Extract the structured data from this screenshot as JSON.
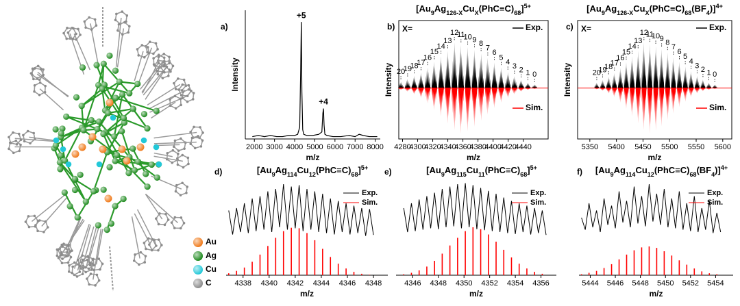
{
  "structure_legend": [
    {
      "label": "Au",
      "color": "#f07a1a"
    },
    {
      "label": "Ag",
      "color": "#1e8a1e"
    },
    {
      "label": "Cu",
      "color": "#22c8d8"
    },
    {
      "label": "C",
      "color": "#8c8c8c"
    }
  ],
  "chart_data": [
    {
      "type": "line",
      "label": "a)",
      "xlabel": "m/z",
      "ylabel": "Intensity",
      "xlim": [
        1550,
        8250
      ],
      "ylim": [
        0,
        110
      ],
      "xticks": [
        2000,
        3000,
        4000,
        5000,
        6000,
        7000,
        8000
      ],
      "x": [
        1900,
        2200,
        2500,
        2800,
        3100,
        3400,
        3700,
        4000,
        4150,
        4250,
        4300,
        4330,
        4360,
        4400,
        4450,
        4600,
        4900,
        5200,
        5350,
        5400,
        5430,
        5460,
        5500,
        5600,
        5900,
        6300,
        6700,
        7000,
        7200,
        7400,
        7700,
        8000,
        8100
      ],
      "values": [
        2,
        3,
        2,
        3,
        2,
        2,
        3,
        3,
        4,
        10,
        60,
        100,
        40,
        8,
        4,
        3,
        3,
        4,
        6,
        22,
        26,
        12,
        4,
        3,
        2,
        2,
        3,
        2,
        4,
        3,
        2,
        2,
        2
      ],
      "color": "#000000",
      "annotations": [
        "+5",
        "+4"
      ]
    },
    {
      "type": "mirror",
      "label": "b)",
      "title": [
        {
          "text": "[Au"
        },
        {
          "text": "9",
          "shift": "sub"
        },
        {
          "text": "Ag"
        },
        {
          "text": "126-X",
          "shift": "sub"
        },
        {
          "text": "Cu"
        },
        {
          "text": "X",
          "shift": "sub"
        },
        {
          "text": "(PhC≡C)"
        },
        {
          "text": "68",
          "shift": "sub"
        },
        {
          "text": "]"
        },
        {
          "text": "5+",
          "shift": "sup"
        }
      ],
      "xlabel": "m/z",
      "ylabel": "Intensity",
      "note": "X=",
      "xlim": [
        4275,
        4473
      ],
      "ylim": [
        0,
        100
      ],
      "xticks": [
        4280,
        4300,
        4320,
        4340,
        4360,
        4380,
        4400,
        4420,
        4440
      ],
      "x": [
        4277.8,
        4286.7,
        4295.5,
        4304.4,
        4313.2,
        4322.1,
        4331.0,
        4339.8,
        4348.7,
        4357.5,
        4366.4,
        4375.3,
        4384.1,
        4393.0,
        4401.8,
        4410.7,
        4419.6,
        4428.4,
        4437.3,
        4446.1,
        4455.0
      ],
      "point_labels": [
        20,
        19,
        18,
        17,
        16,
        15,
        14,
        13,
        12,
        11,
        10,
        9,
        8,
        7,
        6,
        5,
        4,
        3,
        2,
        1,
        0
      ],
      "series": [
        {
          "name": "Exp.",
          "color": "#000000",
          "values": [
            14,
            20,
            27,
            34,
            45,
            58,
            70,
            82,
            100,
            95,
            90,
            84,
            76,
            66,
            56,
            45,
            35,
            26,
            18,
            12,
            8
          ]
        },
        {
          "name": "Sim.",
          "color": "#ff0000",
          "mirrored": true,
          "values": [
            4,
            8,
            14,
            22,
            34,
            48,
            62,
            78,
            92,
            100,
            95,
            85,
            72,
            58,
            44,
            32,
            22,
            14,
            8,
            4,
            2
          ]
        }
      ]
    },
    {
      "type": "mirror",
      "label": "c)",
      "title": [
        {
          "text": "[Au"
        },
        {
          "text": "9",
          "shift": "sub"
        },
        {
          "text": "Ag"
        },
        {
          "text": "126-X",
          "shift": "sub"
        },
        {
          "text": "Cu"
        },
        {
          "text": "X",
          "shift": "sub"
        },
        {
          "text": "(PhC≡C)"
        },
        {
          "text": "68",
          "shift": "sub"
        },
        {
          "text": "(BF"
        },
        {
          "text": "4",
          "shift": "sub"
        },
        {
          "text": ")]"
        },
        {
          "text": "4+",
          "shift": "sup"
        }
      ],
      "xlabel": "m/z",
      "ylabel": "Intensity",
      "note": "X=",
      "xlim": [
        5327,
        5617
      ],
      "ylim": [
        0,
        100
      ],
      "xticks": [
        5350,
        5400,
        5450,
        5500,
        5550,
        5600
      ],
      "x": [
        5363,
        5374.1,
        5385.2,
        5396.3,
        5407.4,
        5418.5,
        5429.6,
        5440.7,
        5451.8,
        5462.9,
        5474,
        5485.1,
        5496.2,
        5507.3,
        5518.4,
        5529.5,
        5540.6,
        5551.7,
        5562.8,
        5573.9,
        5585
      ],
      "point_labels": [
        20,
        19,
        18,
        17,
        16,
        15,
        14,
        13,
        12,
        11,
        10,
        9,
        8,
        7,
        6,
        5,
        4,
        3,
        2,
        1,
        0
      ],
      "series": [
        {
          "name": "Exp.",
          "color": "#000000",
          "values": [
            12,
            18,
            25,
            33,
            44,
            57,
            70,
            82,
            100,
            96,
            92,
            86,
            78,
            68,
            58,
            47,
            37,
            27,
            19,
            12,
            8
          ]
        },
        {
          "name": "Sim.",
          "color": "#ff0000",
          "mirrored": true,
          "values": [
            3,
            6,
            12,
            20,
            32,
            46,
            62,
            78,
            92,
            100,
            94,
            84,
            70,
            56,
            42,
            30,
            20,
            12,
            7,
            4,
            2
          ]
        }
      ]
    },
    {
      "type": "isotope",
      "label": "d)",
      "title": [
        {
          "text": "[Au"
        },
        {
          "text": "9",
          "shift": "sub"
        },
        {
          "text": "Ag"
        },
        {
          "text": "114",
          "shift": "sub"
        },
        {
          "text": "Cu"
        },
        {
          "text": "12",
          "shift": "sub"
        },
        {
          "text": "(PhC≡C)"
        },
        {
          "text": "68",
          "shift": "sub"
        },
        {
          "text": "]"
        },
        {
          "text": "5+",
          "shift": "sup"
        }
      ],
      "xlabel": "m/z",
      "xlim": [
        4336.7,
        4349.1
      ],
      "ylim": [
        0,
        200
      ],
      "xticks": [
        4338,
        4340,
        4342,
        4344,
        4346,
        4348
      ],
      "x": [
        4336.9,
        4337.2,
        4337.5,
        4337.8,
        4338.1,
        4338.4,
        4338.7,
        4339,
        4339.3,
        4339.6,
        4339.9,
        4340.2,
        4340.5,
        4340.8,
        4341.1,
        4341.4,
        4341.7,
        4342,
        4342.3,
        4342.6,
        4342.9,
        4343.2,
        4343.5,
        4343.8,
        4344.1,
        4344.4,
        4344.7,
        4345,
        4345.3,
        4345.6,
        4345.9,
        4346.2,
        4346.5,
        4346.8,
        4347.1,
        4347.4,
        4347.7,
        4348
      ],
      "series": [
        {
          "name": "Exp.",
          "color": "#000000",
          "values": [
            135,
            85,
            140,
            90,
            150,
            88,
            160,
            92,
            165,
            95,
            175,
            90,
            180,
            100,
            190,
            95,
            185,
            98,
            188,
            92,
            180,
            95,
            175,
            90,
            170,
            88,
            160,
            85,
            155,
            90,
            150,
            85,
            145,
            88,
            140,
            82,
            138,
            84
          ]
        },
        {
          "name": "Sim.",
          "color": "#ff0000",
          "values": [
            4,
            null,
            9,
            null,
            16,
            null,
            28,
            null,
            43,
            null,
            61,
            null,
            78,
            null,
            92,
            null,
            99,
            null,
            98,
            null,
            88,
            null,
            73,
            null,
            55,
            null,
            38,
            null,
            24,
            null,
            14,
            null,
            7,
            null,
            3,
            null,
            1,
            null
          ]
        }
      ]
    },
    {
      "type": "isotope",
      "label": "e)",
      "title": [
        {
          "text": "[Au"
        },
        {
          "text": "9",
          "shift": "sub"
        },
        {
          "text": "Ag"
        },
        {
          "text": "115",
          "shift": "sub"
        },
        {
          "text": "Cu"
        },
        {
          "text": "11",
          "shift": "sub"
        },
        {
          "text": "(PhC≡C)"
        },
        {
          "text": "68",
          "shift": "sub"
        },
        {
          "text": "]"
        },
        {
          "text": "5+",
          "shift": "sup"
        }
      ],
      "xlabel": "m/z",
      "xlim": [
        4344.7,
        4357.2
      ],
      "ylim": [
        0,
        200
      ],
      "xticks": [
        4346,
        4348,
        4350,
        4352,
        4354,
        4356
      ],
      "x": [
        4345.3,
        4345.6,
        4345.9,
        4346.2,
        4346.5,
        4346.8,
        4347.1,
        4347.4,
        4347.7,
        4348,
        4348.3,
        4348.6,
        4348.9,
        4349.2,
        4349.5,
        4349.8,
        4350.1,
        4350.4,
        4350.7,
        4351,
        4351.3,
        4351.6,
        4351.9,
        4352.2,
        4352.5,
        4352.8,
        4353.1,
        4353.4,
        4353.7,
        4354,
        4354.3,
        4354.6,
        4354.9,
        4355.2,
        4355.5,
        4355.8,
        4356.1,
        4356.4
      ],
      "series": [
        {
          "name": "Exp.",
          "color": "#000000",
          "values": [
            140,
            90,
            150,
            92,
            158,
            95,
            165,
            98,
            172,
            96,
            180,
            100,
            185,
            102,
            190,
            98,
            192,
            100,
            188,
            96,
            182,
            94,
            176,
            92,
            170,
            90,
            162,
            88,
            155,
            86,
            150,
            90,
            145,
            85,
            140,
            88,
            135,
            84
          ]
        },
        {
          "name": "Sim.",
          "color": "#ff0000",
          "values": [
            2,
            null,
            5,
            null,
            10,
            null,
            18,
            null,
            30,
            null,
            45,
            null,
            62,
            null,
            78,
            null,
            92,
            null,
            100,
            null,
            96,
            null,
            85,
            null,
            70,
            null,
            53,
            null,
            37,
            null,
            24,
            null,
            14,
            null,
            7,
            null,
            3,
            null
          ]
        }
      ]
    },
    {
      "type": "isotope",
      "label": "f)",
      "title": [
        {
          "text": "[Au"
        },
        {
          "text": "9",
          "shift": "sub"
        },
        {
          "text": "Ag"
        },
        {
          "text": "114",
          "shift": "sub"
        },
        {
          "text": "Cu"
        },
        {
          "text": "12",
          "shift": "sub"
        },
        {
          "text": "(PhC≡C)"
        },
        {
          "text": "68",
          "shift": "sub"
        },
        {
          "text": "(BF"
        },
        {
          "text": "4",
          "shift": "sub"
        },
        {
          "text": ")]"
        },
        {
          "text": "4+",
          "shift": "sup"
        }
      ],
      "xlabel": "m/z",
      "xlim": [
        5443.1,
        5455.4
      ],
      "ylim": [
        0,
        200
      ],
      "xticks": [
        5444,
        5446,
        5448,
        5450,
        5452,
        5454
      ],
      "x": [
        5443.3,
        5443.6,
        5443.9,
        5444.2,
        5444.5,
        5444.8,
        5445.1,
        5445.4,
        5445.7,
        5446,
        5446.3,
        5446.6,
        5446.9,
        5447.2,
        5447.5,
        5447.8,
        5448.1,
        5448.4,
        5448.7,
        5449,
        5449.3,
        5449.6,
        5449.9,
        5450.2,
        5450.5,
        5450.8,
        5451.1,
        5451.4,
        5451.7,
        5452,
        5452.3,
        5452.6,
        5452.9,
        5453.2,
        5453.5,
        5453.8,
        5454.1,
        5454.4
      ],
      "series": [
        {
          "name": "Exp.",
          "color": "#000000",
          "values": [
            120,
            95,
            150,
            100,
            135,
            90,
            160,
            105,
            145,
            98,
            175,
            110,
            155,
            100,
            185,
            108,
            165,
            102,
            190,
            112,
            170,
            105,
            180,
            100,
            160,
            98,
            175,
            95,
            150,
            92,
            165,
            90,
            140,
            95,
            155,
            88,
            130,
            90
          ]
        },
        {
          "name": "Sim.",
          "color": "#ff0000",
          "values": [
            2,
            null,
            5,
            null,
            9,
            null,
            15,
            null,
            23,
            null,
            33,
            null,
            43,
            null,
            52,
            null,
            58,
            null,
            60,
            null,
            57,
            null,
            50,
            null,
            41,
            null,
            31,
            null,
            22,
            null,
            14,
            null,
            8,
            null,
            4,
            null,
            2,
            null
          ]
        }
      ]
    }
  ]
}
